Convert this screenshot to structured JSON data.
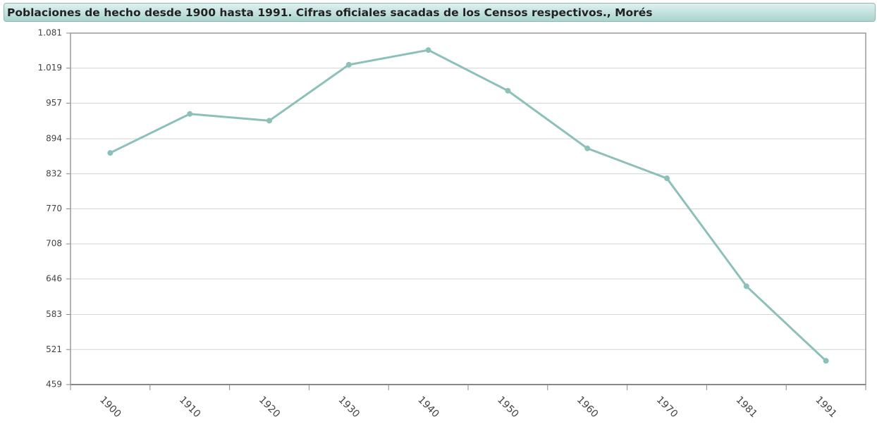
{
  "chart_data": {
    "type": "line",
    "title": "Poblaciones de hecho desde 1900 hasta 1991. Cifras oficiales sacadas de los Censos respectivos., Morés",
    "categories": [
      "1900",
      "1910",
      "1920",
      "1930",
      "1940",
      "1950",
      "1960",
      "1970",
      "1981",
      "1991"
    ],
    "series": [
      {
        "name": "Morés",
        "color": "#8cc0b9",
        "values": [
          869,
          938,
          926,
          1025,
          1051,
          979,
          877,
          824,
          633,
          501
        ]
      }
    ],
    "ylim": [
      459,
      1081
    ],
    "yticks": [
      459,
      521,
      583,
      646,
      708,
      770,
      832,
      894,
      957,
      {
        "value": 1019,
        "label": "1.019"
      },
      {
        "value": 1081,
        "label": "1.081"
      }
    ],
    "grid": true
  }
}
